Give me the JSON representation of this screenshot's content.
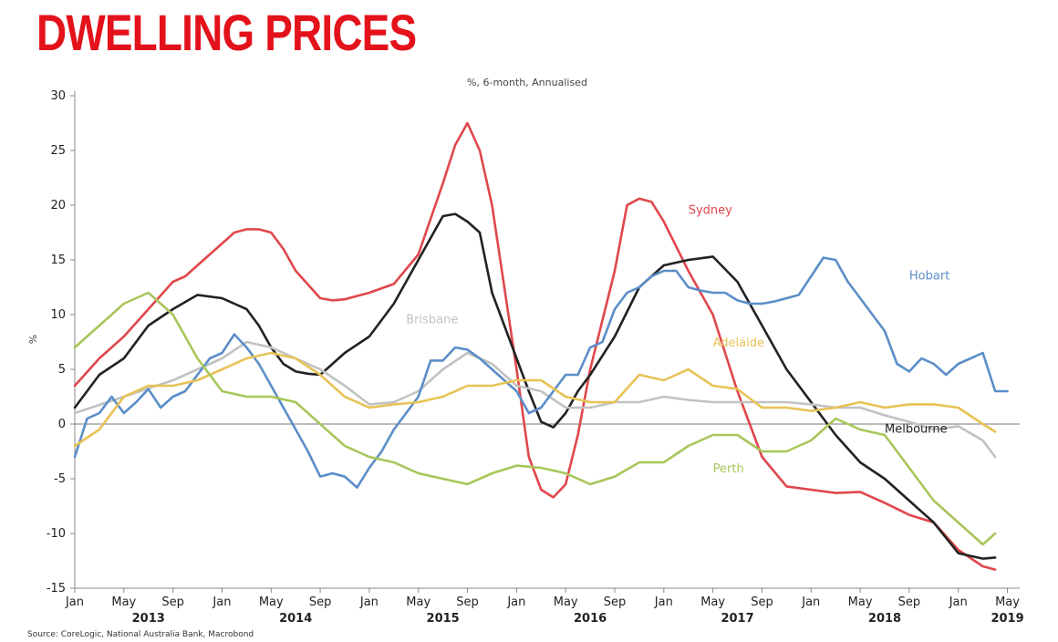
{
  "page": {
    "title": "DWELLING PRICES"
  },
  "chart_data": {
    "type": "line",
    "subtitle": "%, 6-month, Annualised",
    "ylabel": "%",
    "source": "Source: CoreLogic, National Australia Bank, Macrobond",
    "ylim": [
      -15,
      30
    ],
    "yticks": [
      -15,
      -10,
      -5,
      0,
      5,
      10,
      15,
      20,
      25,
      30
    ],
    "xlim": [
      0,
      77
    ],
    "x_unit": "months since Jan 2013",
    "month_ticks": [
      {
        "m": 0,
        "label": "Jan"
      },
      {
        "m": 4,
        "label": "May"
      },
      {
        "m": 8,
        "label": "Sep"
      },
      {
        "m": 12,
        "label": "Jan"
      },
      {
        "m": 16,
        "label": "May"
      },
      {
        "m": 20,
        "label": "Sep"
      },
      {
        "m": 24,
        "label": "Jan"
      },
      {
        "m": 28,
        "label": "May"
      },
      {
        "m": 32,
        "label": "Sep"
      },
      {
        "m": 36,
        "label": "Jan"
      },
      {
        "m": 40,
        "label": "May"
      },
      {
        "m": 44,
        "label": "Sep"
      },
      {
        "m": 48,
        "label": "Jan"
      },
      {
        "m": 52,
        "label": "May"
      },
      {
        "m": 56,
        "label": "Sep"
      },
      {
        "m": 60,
        "label": "Jan"
      },
      {
        "m": 64,
        "label": "May"
      },
      {
        "m": 68,
        "label": "Sep"
      },
      {
        "m": 72,
        "label": "Jan"
      },
      {
        "m": 76,
        "label": "May"
      }
    ],
    "year_ticks": [
      {
        "m": 6,
        "label": "2013"
      },
      {
        "m": 18,
        "label": "2014"
      },
      {
        "m": 30,
        "label": "2015"
      },
      {
        "m": 42,
        "label": "2016"
      },
      {
        "m": 54,
        "label": "2017"
      },
      {
        "m": 66,
        "label": "2018"
      },
      {
        "m": 76,
        "label": "2019"
      }
    ],
    "series": [
      {
        "name": "Sydney",
        "color": "#e0474c",
        "label_at": [
          50,
          19.2
        ],
        "x": [
          0,
          2,
          4,
          6,
          8,
          9,
          10,
          12,
          13,
          14,
          15,
          16,
          17,
          18,
          20,
          21,
          22,
          24,
          26,
          28,
          30,
          31,
          32,
          33,
          34,
          36,
          37,
          38,
          39,
          40,
          41,
          42,
          44,
          45,
          46,
          47,
          48,
          50,
          52,
          54,
          56,
          58,
          60,
          62,
          64,
          66,
          68,
          70,
          72,
          74,
          75
        ],
        "y": [
          3.5,
          6,
          8,
          10.5,
          13,
          13.5,
          14.5,
          16.5,
          17.5,
          17.8,
          17.8,
          17.5,
          16,
          14,
          11.5,
          11.3,
          11.4,
          12,
          12.8,
          15.5,
          22,
          25.5,
          27.5,
          25,
          20,
          5,
          -3,
          -6,
          -6.7,
          -5.5,
          -1,
          5,
          14,
          20,
          20.6,
          20.3,
          18.5,
          14,
          10,
          3,
          -3,
          -5.7,
          -6,
          -6.3,
          -6.2,
          -7.2,
          -8.3,
          -9,
          -11.5,
          -13,
          -13.3
        ]
      },
      {
        "name": "Melbourne",
        "color": "#222222",
        "label_at": [
          66,
          -0.8
        ],
        "x": [
          0,
          2,
          4,
          6,
          8,
          10,
          12,
          13,
          14,
          15,
          16,
          17,
          18,
          19,
          20,
          22,
          24,
          26,
          28,
          30,
          31,
          32,
          33,
          34,
          36,
          37,
          38,
          39,
          40,
          41,
          42,
          44,
          46,
          48,
          50,
          52,
          54,
          55,
          56,
          58,
          60,
          62,
          64,
          66,
          68,
          70,
          72,
          74,
          75
        ],
        "y": [
          1.5,
          4.5,
          6,
          9,
          10.5,
          11.8,
          11.5,
          11,
          10.5,
          9,
          7,
          5.5,
          4.8,
          4.6,
          4.5,
          6.5,
          8,
          11,
          15,
          19,
          19.2,
          18.5,
          17.5,
          12,
          6,
          3,
          0.2,
          -0.3,
          1,
          3,
          4.5,
          8,
          12.5,
          14.5,
          15,
          15.3,
          13,
          11,
          9,
          5,
          2,
          -1,
          -3.5,
          -5,
          -7,
          -9,
          -11.8,
          -12.3,
          -12.2
        ]
      },
      {
        "name": "Brisbane",
        "color": "#c2c2c2",
        "label_at": [
          27,
          9.2
        ],
        "x": [
          0,
          4,
          8,
          12,
          14,
          16,
          18,
          20,
          22,
          24,
          26,
          28,
          30,
          32,
          34,
          36,
          38,
          40,
          42,
          44,
          46,
          48,
          50,
          52,
          54,
          56,
          58,
          60,
          62,
          64,
          66,
          68,
          70,
          72,
          74,
          75
        ],
        "y": [
          1,
          2.5,
          4,
          6,
          7.5,
          7,
          6,
          5,
          3.5,
          1.8,
          2,
          3,
          5,
          6.5,
          5.5,
          3.5,
          3,
          1.5,
          1.5,
          2,
          2,
          2.5,
          2.2,
          2,
          2,
          2,
          2,
          1.8,
          1.5,
          1.5,
          0.8,
          0.2,
          -0.5,
          -0.2,
          -1.5,
          -3
        ]
      },
      {
        "name": "Hobart",
        "color": "#5b8ec8",
        "label_at": [
          68,
          13.2
        ],
        "x": [
          0,
          1,
          2,
          3,
          4,
          5,
          6,
          7,
          8,
          9,
          10,
          11,
          12,
          13,
          14,
          15,
          16,
          17,
          18,
          19,
          20,
          21,
          22,
          23,
          24,
          25,
          26,
          27,
          28,
          29,
          30,
          31,
          32,
          33,
          34,
          35,
          36,
          37,
          38,
          39,
          40,
          41,
          42,
          43,
          44,
          45,
          46,
          47,
          48,
          49,
          50,
          51,
          52,
          53,
          54,
          55,
          56,
          57,
          58,
          59,
          60,
          61,
          62,
          63,
          64,
          65,
          66,
          67,
          68,
          69,
          70,
          71,
          72,
          73,
          74,
          75,
          76
        ],
        "y": [
          -3,
          0.5,
          1,
          2.5,
          1,
          2,
          3.2,
          1.5,
          2.5,
          3,
          4.5,
          6,
          6.5,
          8.2,
          7,
          5.5,
          3.5,
          1.5,
          -0.5,
          -2.5,
          -4.8,
          -4.5,
          -4.8,
          -5.8,
          -4,
          -2.5,
          -0.5,
          1,
          2.5,
          5.8,
          5.8,
          7,
          6.8,
          6,
          5,
          4,
          3,
          1,
          1.5,
          3,
          4.5,
          4.5,
          7,
          7.5,
          10.5,
          12,
          12.5,
          13.5,
          14,
          14,
          12.5,
          12.2,
          12,
          12,
          11.3,
          11,
          11,
          11.2,
          11.5,
          11.8,
          13.5,
          15.2,
          15,
          13,
          11.5,
          10,
          8.5,
          5.5,
          4.8,
          6,
          5.5,
          4.5,
          5.5,
          6,
          6.5,
          3,
          3
        ]
      },
      {
        "name": "Adelaide",
        "color": "#e8c255",
        "label_at": [
          52,
          7.1
        ],
        "x": [
          0,
          2,
          4,
          6,
          8,
          10,
          12,
          14,
          16,
          18,
          20,
          22,
          24,
          26,
          28,
          30,
          32,
          34,
          36,
          38,
          40,
          42,
          44,
          46,
          48,
          50,
          52,
          54,
          56,
          58,
          60,
          62,
          64,
          66,
          68,
          70,
          72,
          74,
          75
        ],
        "y": [
          -2,
          -0.5,
          2.5,
          3.5,
          3.5,
          4,
          5,
          6,
          6.5,
          6,
          4.5,
          2.5,
          1.5,
          1.8,
          2,
          2.5,
          3.5,
          3.5,
          4,
          4,
          2.5,
          2,
          2,
          4.5,
          4,
          5,
          3.5,
          3.2,
          1.5,
          1.5,
          1.2,
          1.5,
          2,
          1.5,
          1.8,
          1.8,
          1.5,
          0,
          -0.7
        ]
      },
      {
        "name": "Perth",
        "color": "#a8c65a",
        "label_at": [
          52,
          -4.4
        ],
        "x": [
          0,
          2,
          4,
          6,
          8,
          10,
          12,
          14,
          16,
          18,
          20,
          22,
          24,
          26,
          28,
          30,
          32,
          34,
          36,
          38,
          40,
          42,
          44,
          46,
          48,
          50,
          52,
          54,
          56,
          58,
          60,
          62,
          64,
          66,
          68,
          70,
          72,
          74,
          75
        ],
        "y": [
          7,
          9,
          11,
          12,
          10,
          6,
          3,
          2.5,
          2.5,
          2,
          0,
          -2,
          -3,
          -3.5,
          -4.5,
          -5,
          -5.5,
          -4.5,
          -3.8,
          -4,
          -4.5,
          -5.5,
          -4.8,
          -3.5,
          -3.5,
          -2,
          -1,
          -1,
          -2.5,
          -2.5,
          -1.5,
          0.5,
          -0.5,
          -1,
          -4,
          -7,
          -9,
          -11,
          -10
        ]
      }
    ]
  }
}
